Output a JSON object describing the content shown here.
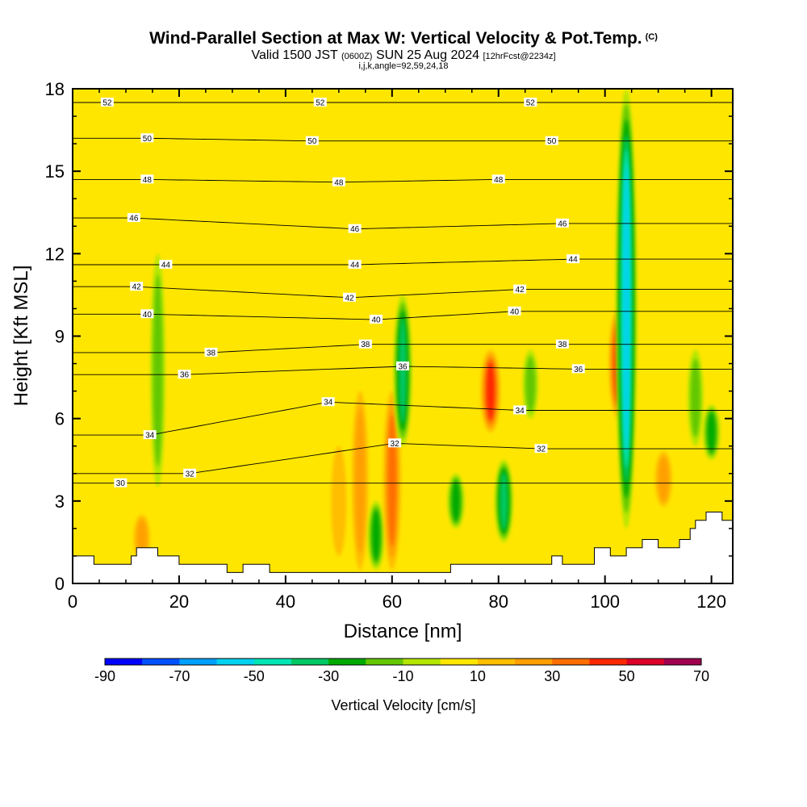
{
  "header": {
    "title": "Wind-Parallel Section at Max W: Vertical Velocity & Pot.Temp.",
    "title_mark": "(C)",
    "valid_a": "Valid 1500 JST",
    "valid_utc": "(0600Z)",
    "valid_b": "SUN 25 Aug 2024",
    "fcst": "[12hrFcst@2234z]",
    "indices": "i,j,k,angle=92,59,24,18"
  },
  "chart_data": {
    "type": "heatmap",
    "xlabel": "Distance [nm]",
    "ylabel": "Height [Kft MSL]",
    "xlim": [
      0,
      124
    ],
    "ylim": [
      0,
      18
    ],
    "x_ticks": [
      0,
      20,
      40,
      60,
      80,
      100,
      120
    ],
    "y_ticks": [
      0,
      3,
      6,
      9,
      12,
      15,
      18
    ],
    "background_level": "0 to 10 cm/s",
    "colorbar": {
      "title": "Vertical Velocity [cm/s]",
      "tick_labels": [
        -90,
        -70,
        -50,
        -30,
        -10,
        10,
        30,
        50,
        70
      ],
      "levels": [
        -90,
        -80,
        -70,
        -60,
        -50,
        -40,
        -30,
        -20,
        -10,
        0,
        10,
        20,
        30,
        40,
        50,
        60,
        70
      ],
      "colors": [
        "#0000ff",
        "#0050ff",
        "#00a0ff",
        "#00d2f0",
        "#00e6b4",
        "#00c864",
        "#00aa00",
        "#64c800",
        "#b4e600",
        "#ffe600",
        "#ffbe00",
        "#ffa000",
        "#ff6e00",
        "#ff2800",
        "#dc0028",
        "#a00050",
        "#780078"
      ]
    },
    "w_features": [
      {
        "x": 13,
        "y_bottom": 0.8,
        "y_top": 2.5,
        "w": 25
      },
      {
        "x": 16,
        "y_bottom": 3.5,
        "y_top": 12,
        "w": -15
      },
      {
        "x": 18,
        "y_bottom": 6,
        "y_top": 10,
        "w": 8
      },
      {
        "x": 50,
        "y_bottom": 1,
        "y_top": 5,
        "w": 18
      },
      {
        "x": 54,
        "y_bottom": 0.5,
        "y_top": 7,
        "w": 25
      },
      {
        "x": 57,
        "y_bottom": 0.5,
        "y_top": 3,
        "w": -25
      },
      {
        "x": 60,
        "y_bottom": 0.5,
        "y_top": 7,
        "w": 35
      },
      {
        "x": 62,
        "y_bottom": 5,
        "y_top": 10.5,
        "w": -40
      },
      {
        "x": 72,
        "y_bottom": 2,
        "y_top": 4,
        "w": -30
      },
      {
        "x": 78.5,
        "y_bottom": 5.5,
        "y_top": 8.5,
        "w": 50
      },
      {
        "x": 81,
        "y_bottom": 1.5,
        "y_top": 4.5,
        "w": -40
      },
      {
        "x": 86,
        "y_bottom": 6,
        "y_top": 8.5,
        "w": -20
      },
      {
        "x": 102.5,
        "y_bottom": 6,
        "y_top": 10,
        "w": 45
      },
      {
        "x": 104,
        "y_bottom": 2,
        "y_top": 18,
        "w": -60
      },
      {
        "x": 111,
        "y_bottom": 2.8,
        "y_top": 4.8,
        "w": 30
      },
      {
        "x": 117,
        "y_bottom": 5,
        "y_top": 8.5,
        "w": -20
      },
      {
        "x": 120,
        "y_bottom": 4.5,
        "y_top": 6.5,
        "w": -30
      }
    ],
    "theta_contours": [
      {
        "label": "30",
        "label_x": 9,
        "label_y": 3.65
      },
      {
        "label": "32",
        "label_x": 22,
        "label_y": 4.0
      },
      {
        "label": "32",
        "label_x": 60.5,
        "label_y": 5.1
      },
      {
        "label": "32",
        "label_x": 88,
        "label_y": 4.9
      },
      {
        "label": "34",
        "label_x": 14.5,
        "label_y": 5.4
      },
      {
        "label": "34",
        "label_x": 48,
        "label_y": 6.6
      },
      {
        "label": "34",
        "label_x": 84,
        "label_y": 6.3
      },
      {
        "label": "36",
        "label_x": 21,
        "label_y": 7.6
      },
      {
        "label": "36",
        "label_x": 62,
        "label_y": 7.9
      },
      {
        "label": "36",
        "label_x": 95,
        "label_y": 7.8
      },
      {
        "label": "38",
        "label_x": 26,
        "label_y": 8.4
      },
      {
        "label": "38",
        "label_x": 55,
        "label_y": 8.7
      },
      {
        "label": "38",
        "label_x": 92,
        "label_y": 8.7
      },
      {
        "label": "40",
        "label_x": 14,
        "label_y": 9.8
      },
      {
        "label": "40",
        "label_x": 57,
        "label_y": 9.6
      },
      {
        "label": "40",
        "label_x": 83,
        "label_y": 9.9
      },
      {
        "label": "42",
        "label_x": 12,
        "label_y": 10.8
      },
      {
        "label": "42",
        "label_x": 52,
        "label_y": 10.4
      },
      {
        "label": "42",
        "label_x": 84,
        "label_y": 10.7
      },
      {
        "label": "44",
        "label_x": 17.5,
        "label_y": 11.6
      },
      {
        "label": "44",
        "label_x": 53,
        "label_y": 11.6
      },
      {
        "label": "44",
        "label_x": 94,
        "label_y": 11.8
      },
      {
        "label": "46",
        "label_x": 11.5,
        "label_y": 13.3
      },
      {
        "label": "46",
        "label_x": 53,
        "label_y": 12.9
      },
      {
        "label": "46",
        "label_x": 92,
        "label_y": 13.1
      },
      {
        "label": "48",
        "label_x": 14,
        "label_y": 14.7
      },
      {
        "label": "48",
        "label_x": 50,
        "label_y": 14.6
      },
      {
        "label": "48",
        "label_x": 80,
        "label_y": 14.7
      },
      {
        "label": "50",
        "label_x": 14,
        "label_y": 16.2
      },
      {
        "label": "50",
        "label_x": 45,
        "label_y": 16.1
      },
      {
        "label": "50",
        "label_x": 90,
        "label_y": 16.1
      },
      {
        "label": "52",
        "label_x": 6.5,
        "label_y": 17.5
      },
      {
        "label": "52",
        "label_x": 46.5,
        "label_y": 17.5
      },
      {
        "label": "52",
        "label_x": 86,
        "label_y": 17.5
      }
    ],
    "terrain": [
      [
        0,
        1.0
      ],
      [
        4,
        1.0
      ],
      [
        4,
        0.7
      ],
      [
        11,
        0.7
      ],
      [
        11,
        1.0
      ],
      [
        12,
        1.0
      ],
      [
        12,
        1.3
      ],
      [
        16,
        1.3
      ],
      [
        16,
        1.0
      ],
      [
        20,
        1.0
      ],
      [
        20,
        0.7
      ],
      [
        29,
        0.7
      ],
      [
        29,
        0.4
      ],
      [
        32,
        0.4
      ],
      [
        32,
        0.7
      ],
      [
        37,
        0.7
      ],
      [
        37,
        0.4
      ],
      [
        71,
        0.4
      ],
      [
        71,
        0.7
      ],
      [
        90,
        0.7
      ],
      [
        90,
        1.0
      ],
      [
        92,
        1.0
      ],
      [
        92,
        0.7
      ],
      [
        98,
        0.7
      ],
      [
        98,
        1.3
      ],
      [
        101,
        1.3
      ],
      [
        101,
        1.0
      ],
      [
        104,
        1.0
      ],
      [
        104,
        1.3
      ],
      [
        107,
        1.3
      ],
      [
        107,
        1.6
      ],
      [
        110,
        1.6
      ],
      [
        110,
        1.3
      ],
      [
        114,
        1.3
      ],
      [
        114,
        1.6
      ],
      [
        116,
        1.6
      ],
      [
        116,
        2.0
      ],
      [
        117,
        2.0
      ],
      [
        117,
        2.3
      ],
      [
        119,
        2.3
      ],
      [
        119,
        2.6
      ],
      [
        122,
        2.6
      ],
      [
        122,
        2.3
      ],
      [
        124,
        2.3
      ]
    ]
  }
}
